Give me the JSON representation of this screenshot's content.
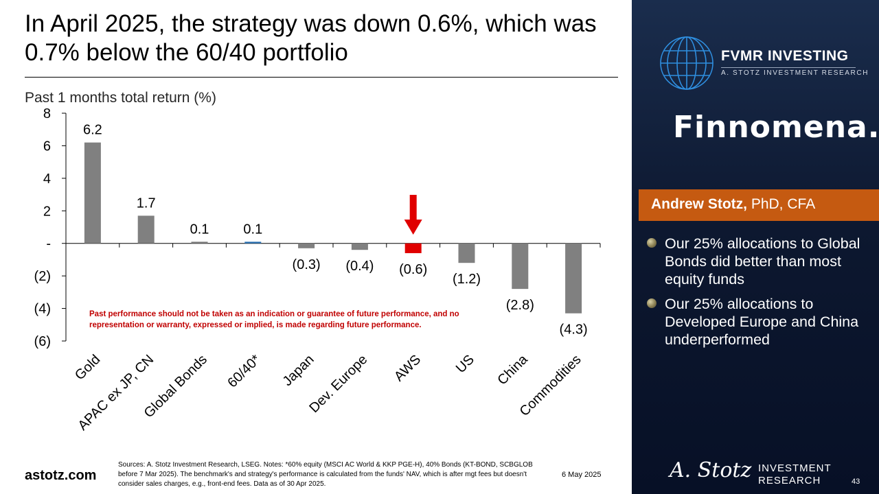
{
  "title": "In April 2025, the strategy was down 0.6%, which was 0.7% below the 60/40 portfolio",
  "chart_data": {
    "type": "bar",
    "title": "Past 1 months total return (%)",
    "categories": [
      "Gold",
      "APAC ex JP, CN",
      "Global Bonds",
      "60/40*",
      "Japan",
      "Dev. Europe",
      "AWS",
      "US",
      "China",
      "Commodities"
    ],
    "values": [
      6.2,
      1.7,
      0.1,
      0.1,
      -0.3,
      -0.4,
      -0.6,
      -1.2,
      -2.8,
      -4.3
    ],
    "value_labels": [
      "6.2",
      "1.7",
      "0.1",
      "0.1",
      "(0.3)",
      "(0.4)",
      "(0.6)",
      "(1.2)",
      "(2.8)",
      "(4.3)"
    ],
    "ylim": [
      -6,
      8
    ],
    "yticks": [
      8,
      6,
      4,
      2,
      0,
      -2,
      -4,
      -6
    ],
    "ytick_labels": [
      "8",
      "6",
      "4",
      "2",
      "-",
      "(2)",
      "(4)",
      "(6)"
    ],
    "highlight_category": "AWS",
    "colors": {
      "default": "#808080",
      "benchmark": "#2e75b6",
      "strategy": "#e00000",
      "arrow": "#e00000"
    },
    "grid": false,
    "legend": "none"
  },
  "disclaimer": "Past performance should not be taken as an indication or guarantee of future performance, and no representation or warranty, expressed or implied, is made regarding future performance.",
  "footer": {
    "website": "astotz.com",
    "sources": "Sources: A. Stotz Investment Research, LSEG. Notes: *60% equity (MSCI AC World & KKP PGE-H), 40% Bonds (KT-BOND, SCBGLOB before 7 Mar 2025). The benchmark's and strategy's performance is calculated from the funds' NAV, which is after mgt fees but doesn't consider sales charges, e.g., front-end fees. Data as of 30 Apr 2025.",
    "date": "6 May 2025",
    "page": "43"
  },
  "panel": {
    "brand_name": "FVMR INVESTING",
    "brand_sub": "A. STOTZ INVESTMENT RESEARCH",
    "partner": "Finnomena.",
    "author_name": "Andrew Stotz,",
    "author_credentials": " PhD, CFA",
    "bullets": [
      "Our 25% allocations to Global Bonds did better than most equity funds",
      "Our 25% allocations to Developed Europe and China underperformed"
    ],
    "signature": "A. Stotz",
    "signature_line1": "INVESTMENT",
    "signature_line2": "RESEARCH"
  }
}
